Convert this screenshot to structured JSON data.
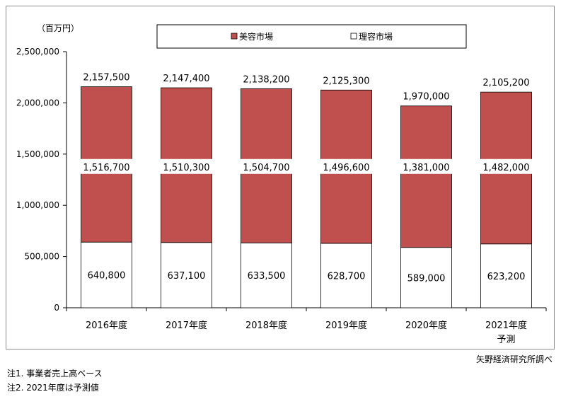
{
  "chart_data": {
    "type": "bar",
    "stacked": true,
    "unit_label": "（百万円）",
    "categories": [
      [
        "2016年度"
      ],
      [
        "2017年度"
      ],
      [
        "2018年度"
      ],
      [
        "2019年度"
      ],
      [
        "2020年度"
      ],
      [
        "2021年度",
        "予測"
      ]
    ],
    "series": [
      {
        "name": "理容市場",
        "color": "#ffffff",
        "values": [
          640800,
          637100,
          633500,
          628700,
          589000,
          623200
        ]
      },
      {
        "name": "美容市場",
        "color": "#c0504d",
        "values": [
          1516700,
          1510300,
          1504700,
          1496600,
          1381000,
          1482000
        ]
      }
    ],
    "totals": [
      2157500,
      2147400,
      2138200,
      2125300,
      1970000,
      2105200
    ],
    "data_labels": {
      "bottom": [
        "640,800",
        "637,100",
        "633,500",
        "628,700",
        "589,000",
        "623,200"
      ],
      "middle": [
        "1,516,700",
        "1,510,300",
        "1,504,700",
        "1,496,600",
        "1,381,000",
        "1,482,000"
      ],
      "top": [
        "2,157,500",
        "2,147,400",
        "2,138,200",
        "2,125,300",
        "1,970,000",
        "2,105,200"
      ]
    },
    "ylim": [
      0,
      2500000
    ],
    "yticks": [
      0,
      500000,
      1000000,
      1500000,
      2000000,
      2500000
    ],
    "ytick_labels": [
      "0",
      "500,000",
      "1,000,000",
      "1,500,000",
      "2,000,000",
      "2,500,000"
    ],
    "legend": {
      "placement": "top",
      "entries": [
        "美容市場",
        "理容市場"
      ]
    },
    "grid": false
  },
  "source": "矢野経済研究所調べ",
  "notes": [
    "注1.  事業者売上高ベース",
    "注2.  2021年度は予測値"
  ]
}
